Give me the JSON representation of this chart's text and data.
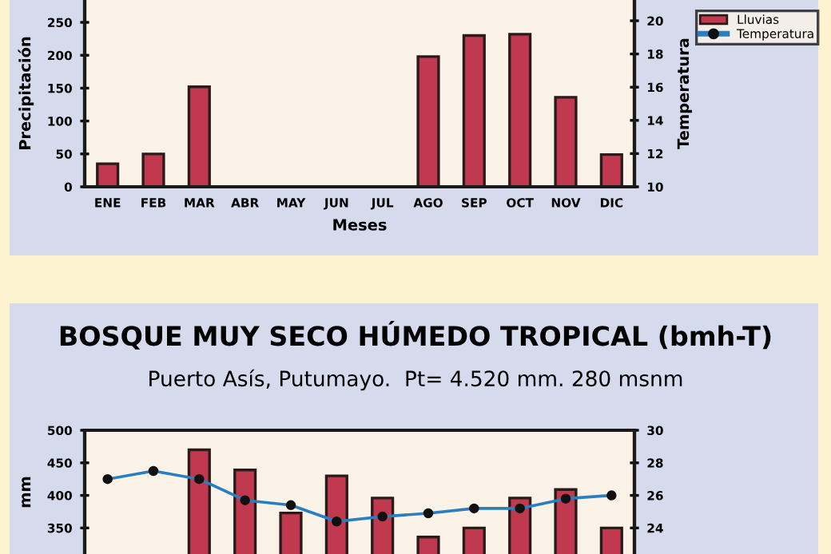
{
  "chart_data": [
    {
      "type": "bar",
      "categories": [
        "ENE",
        "FEB",
        "MAR",
        "ABR",
        "MAY",
        "JUN",
        "JUL",
        "AGO",
        "SEP",
        "OCT",
        "NOV",
        "DIC"
      ],
      "series": [
        {
          "name": "Lluvias",
          "color": "#c0394f",
          "values": [
            35,
            50,
            152,
            null,
            null,
            null,
            null,
            198,
            230,
            232,
            136,
            49
          ]
        },
        {
          "name": "Temperatura",
          "type": "line",
          "axis": "y2",
          "color": "#2a7fc0",
          "marker": "circle",
          "values": [
            null,
            null,
            null,
            null,
            null,
            null,
            null,
            null,
            null,
            null,
            null,
            null
          ]
        }
      ],
      "xlabel": "Meses",
      "ylabel": "Precipitación",
      "y2label": "Temperatura",
      "ylim": [
        0,
        284
      ],
      "yticks": [
        0,
        50,
        100,
        150,
        200,
        250
      ],
      "y2lim": [
        10,
        21.25
      ],
      "y2ticks": [
        10,
        12,
        14,
        16,
        18,
        20
      ],
      "legend": "right"
    },
    {
      "type": "bar",
      "title": "BOSQUE MUY SECO HÚMEDO TROPICAL (bmh-T)",
      "subtitle": "Puerto Asís, Putumayo.  Pt= 4.520 mm. 280 msnm",
      "categories": [
        null,
        null,
        null,
        null,
        null,
        null,
        null,
        null,
        null,
        null,
        null,
        null
      ],
      "series": [
        {
          "color": "#c0394f",
          "values": [
            null,
            null,
            470,
            439,
            373,
            430,
            396,
            336,
            350,
            396,
            409,
            350
          ]
        },
        {
          "type": "line",
          "axis": "y2",
          "color": "#2a7fc0",
          "marker": "circle",
          "values": [
            27.0,
            27.5,
            27.0,
            25.7,
            25.4,
            24.4,
            24.7,
            24.9,
            25.2,
            25.2,
            25.8,
            26.0
          ]
        }
      ],
      "ylabel": "mm",
      "ylim": [
        310,
        500
      ],
      "yticks": [
        350,
        400,
        450,
        500
      ],
      "y2lim": [
        22.4,
        30
      ],
      "y2ticks": [
        24,
        26,
        28,
        30
      ]
    }
  ]
}
